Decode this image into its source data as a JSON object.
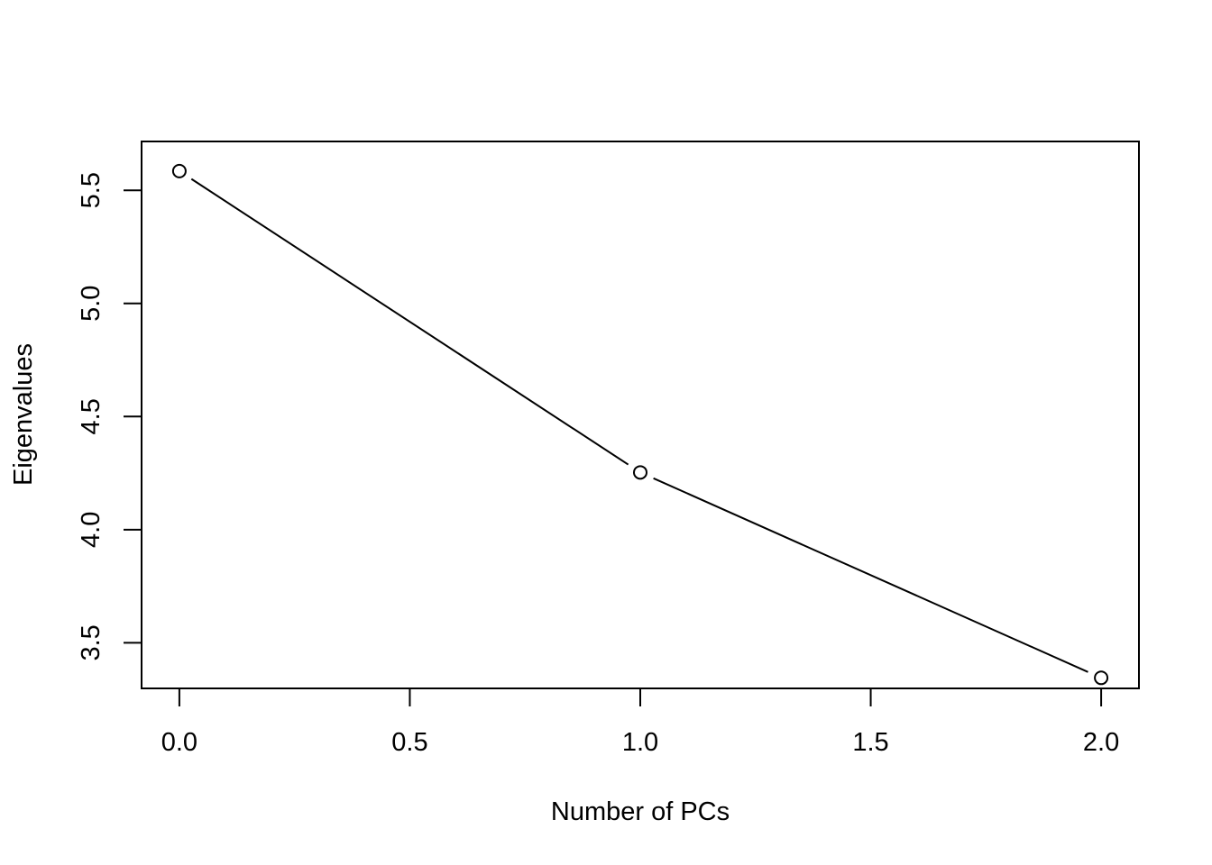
{
  "chart_data": {
    "type": "line",
    "title": "",
    "xlabel": "Number of PCs",
    "ylabel": "Eigenvalues",
    "x": [
      0,
      1,
      2
    ],
    "series": [
      {
        "values": [
          5.585,
          4.253,
          3.345
        ]
      }
    ],
    "xlim": [
      -0.082,
      2.082
    ],
    "ylim": [
      3.2984,
      5.7159
    ],
    "x_ticks": [
      0.0,
      0.5,
      1.0,
      1.5,
      2.0
    ],
    "x_tick_labels": [
      "0.0",
      "0.5",
      "1.0",
      "1.5",
      "2.0"
    ],
    "y_ticks": [
      3.5,
      4.0,
      4.5,
      5.0,
      5.5
    ],
    "y_tick_labels": [
      "3.5",
      "4.0",
      "4.5",
      "5.0",
      "5.5"
    ],
    "marker": "open-circle",
    "grid": false,
    "legend": "none",
    "line_color": "#000000"
  }
}
